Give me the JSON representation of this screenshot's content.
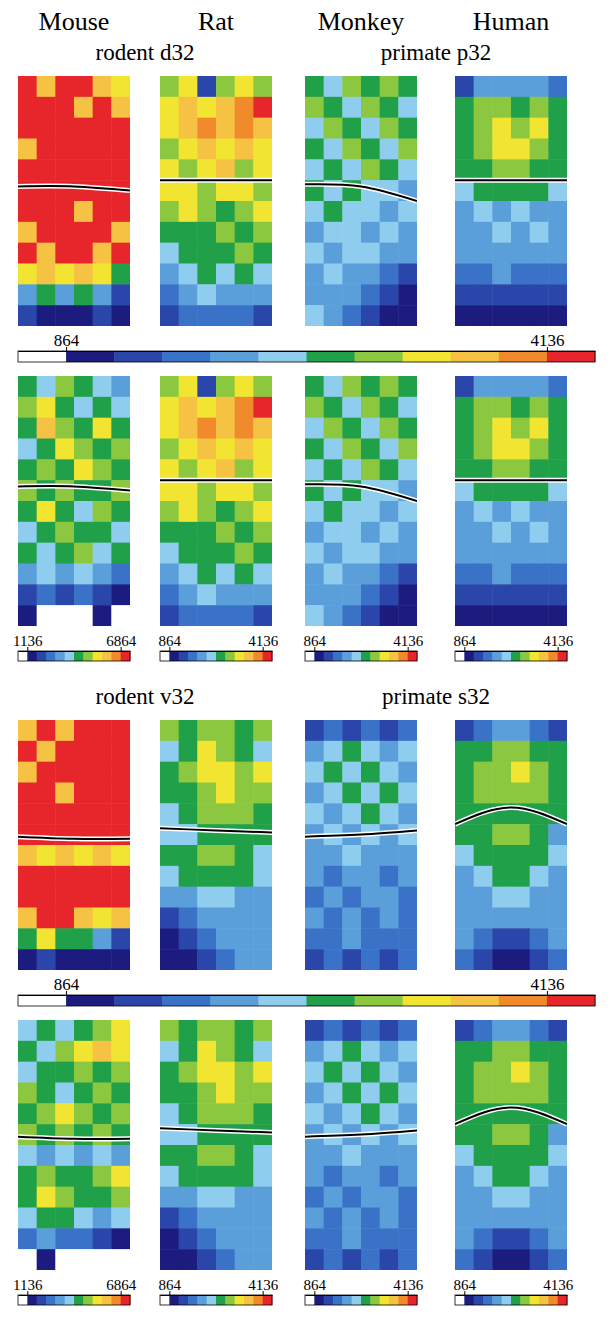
{
  "column_titles": [
    "Mouse",
    "Rat",
    "Monkey",
    "Human"
  ],
  "chart_data": [
    {
      "type": "heatmap",
      "titles": [
        "rodent d32",
        "primate p32"
      ],
      "panels": [
        {
          "cells": [
            [
              4300,
              3700,
              4800,
              4300,
              3700,
              3200
            ],
            [
              4800,
              5400,
              4300,
              3700,
              4300,
              3700
            ],
            [
              4300,
              5900,
              4800,
              4300,
              5400,
              4300
            ],
            [
              3700,
              4300,
              5400,
              4800,
              4300,
              4800
            ],
            [
              4300,
              4800,
              4300,
              5400,
              4800,
              4300
            ],
            [
              4800,
              4300,
              4800,
              4300,
              4300,
              4800
            ],
            [
              4300,
              5400,
              4300,
              3700,
              4800,
              4300
            ],
            [
              3700,
              4300,
              4800,
              4300,
              4300,
              3700
            ],
            [
              4300,
              3700,
              4300,
              4800,
              3700,
              4300
            ],
            [
              3200,
              3700,
              3200,
              3700,
              3200,
              2600
            ],
            [
              2000,
              2600,
              2000,
              2600,
              2000,
              1500
            ],
            [
              1500,
              1000,
              1000,
              1000,
              1300,
              1000
            ]
          ],
          "boundary": [
            5.3,
            5.3,
            5.5
          ]
        },
        {
          "cells": [
            [
              3000,
              3300,
              1350,
              3000,
              3300,
              3000
            ],
            [
              3300,
              3650,
              3300,
              3650,
              3950,
              4300
            ],
            [
              3300,
              3650,
              3950,
              3650,
              3950,
              3650
            ],
            [
              3000,
              3300,
              3650,
              3300,
              3650,
              3300
            ],
            [
              3300,
              3000,
              3300,
              3650,
              3000,
              3300
            ],
            [
              3300,
              3300,
              3000,
              3300,
              3300,
              3000
            ],
            [
              3000,
              3300,
              3000,
              2650,
              3000,
              3300
            ],
            [
              2650,
              2650,
              2650,
              3000,
              2650,
              3000
            ],
            [
              2350,
              2650,
              2650,
              2650,
              3000,
              2650
            ],
            [
              2000,
              2350,
              2650,
              2350,
              2650,
              2350
            ],
            [
              1700,
              2000,
              2350,
              2000,
              2000,
              2000
            ],
            [
              1350,
              1700,
              1700,
              1700,
              1700,
              1350
            ]
          ],
          "boundary": [
            5.0,
            5.0,
            5.0
          ]
        },
        {
          "cells": [
            [
              2650,
              2350,
              3000,
              2650,
              3000,
              2650
            ],
            [
              3000,
              2650,
              2350,
              3000,
              2650,
              2350
            ],
            [
              2350,
              3000,
              2650,
              2350,
              3000,
              2650
            ],
            [
              2650,
              2350,
              3000,
              2650,
              2350,
              3000
            ],
            [
              2350,
              2650,
              2350,
              3000,
              2650,
              2350
            ],
            [
              2650,
              2350,
              2650,
              2350,
              2350,
              2000
            ],
            [
              2350,
              2650,
              2350,
              2350,
              2000,
              2350
            ],
            [
              2000,
              2350,
              2350,
              2000,
              2350,
              2000
            ],
            [
              2350,
              2000,
              2350,
              2350,
              2000,
              2000
            ],
            [
              2000,
              2350,
              2000,
              2000,
              1700,
              1350
            ],
            [
              2000,
              2000,
              2000,
              1700,
              1350,
              1000
            ],
            [
              2350,
              2000,
              1700,
              1350,
              1000,
              1000
            ]
          ],
          "boundary": [
            5.2,
            5.3,
            6.0
          ]
        },
        {
          "cells": [
            [
              1350,
              2000,
              2000,
              2000,
              2000,
              1700
            ],
            [
              2650,
              3000,
              3000,
              2650,
              3000,
              2650
            ],
            [
              2650,
              3000,
              3300,
              3000,
              3300,
              2650
            ],
            [
              2650,
              3000,
              3300,
              3300,
              3000,
              2650
            ],
            [
              2650,
              2650,
              3000,
              3000,
              2650,
              2650
            ],
            [
              2350,
              2650,
              2650,
              2650,
              2650,
              2350
            ],
            [
              2000,
              2350,
              2000,
              2350,
              2000,
              2000
            ],
            [
              2000,
              2000,
              2350,
              2000,
              2350,
              2000
            ],
            [
              2000,
              2000,
              2000,
              2000,
              2000,
              2000
            ],
            [
              1700,
              1700,
              2000,
              1700,
              1700,
              1700
            ],
            [
              1350,
              1350,
              1350,
              1350,
              1350,
              1350
            ],
            [
              1000,
              1000,
              1000,
              1000,
              1000,
              1000
            ]
          ],
          "boundary": [
            5.0,
            5.0,
            5.0
          ]
        }
      ],
      "colorbar": {
        "range": [
          864,
          4136
        ],
        "ticks": [
          864,
          4136
        ]
      },
      "panel_colorbars": [
        {
          "range": [
            1136,
            6864
          ],
          "ticks": [
            1136,
            6864
          ]
        },
        {
          "range": [
            864,
            4136
          ],
          "ticks": [
            864,
            4136
          ]
        },
        {
          "range": [
            864,
            4136
          ],
          "ticks": [
            864,
            4136
          ]
        },
        {
          "range": [
            864,
            4136
          ],
          "ticks": [
            864,
            4136
          ]
        }
      ]
    },
    {
      "type": "heatmap",
      "titles": [
        "rodent v32",
        "primate s32"
      ],
      "panels": [
        {
          "cells": [
            [
              3700,
              4300,
              3700,
              4300,
              4800,
              5400
            ],
            [
              4300,
              3700,
              4800,
              5400,
              6000,
              5400
            ],
            [
              3700,
              4300,
              4300,
              4800,
              4300,
              4800
            ],
            [
              4800,
              4300,
              3700,
              4300,
              4800,
              4300
            ],
            [
              4300,
              4800,
              5400,
              4800,
              4300,
              4800
            ],
            [
              4800,
              4300,
              4800,
              4300,
              4800,
              4300
            ],
            [
              3700,
              3200,
              3700,
              3200,
              3700,
              3200
            ],
            [
              4300,
              4800,
              4300,
              4300,
              4800,
              5400
            ],
            [
              4300,
              5400,
              4800,
              4300,
              4300,
              4800
            ],
            [
              3700,
              4300,
              4300,
              3700,
              3200,
              3700
            ],
            [
              2600,
              3200,
              2600,
              2600,
              2000,
              1500
            ],
            [
              1000,
              1500,
              1000,
              1000,
              900,
              900
            ]
          ],
          "boundary": [
            5.6,
            5.7,
            5.7
          ]
        },
        {
          "cells": [
            [
              3000,
              2650,
              3000,
              3000,
              2650,
              3000
            ],
            [
              2350,
              2650,
              3300,
              3000,
              2650,
              2350
            ],
            [
              2650,
              3000,
              3300,
              3300,
              3000,
              3300
            ],
            [
              2650,
              2650,
              3000,
              3300,
              3000,
              3000
            ],
            [
              2350,
              2650,
              3000,
              3000,
              3000,
              2650
            ],
            [
              2350,
              2350,
              2650,
              2650,
              2650,
              2650
            ],
            [
              2650,
              2650,
              3000,
              3000,
              2650,
              2350
            ],
            [
              2350,
              2650,
              2650,
              2650,
              2650,
              2350
            ],
            [
              2000,
              2000,
              2350,
              2350,
              2000,
              2000
            ],
            [
              1350,
              1700,
              2000,
              2000,
              2000,
              2000
            ],
            [
              1000,
              1350,
              1700,
              2000,
              2000,
              2000
            ],
            [
              1000,
              1000,
              1350,
              1700,
              2000,
              2000
            ]
          ],
          "boundary": [
            5.2,
            5.3,
            5.4
          ]
        },
        {
          "cells": [
            [
              1350,
              1700,
              1350,
              1700,
              1350,
              1700
            ],
            [
              2000,
              2350,
              2650,
              2350,
              2000,
              2350
            ],
            [
              2350,
              2650,
              2350,
              2650,
              2350,
              2000
            ],
            [
              2000,
              2350,
              2650,
              2350,
              2650,
              2350
            ],
            [
              2350,
              2000,
              2350,
              2650,
              2350,
              2000
            ],
            [
              2000,
              2350,
              2000,
              2350,
              2000,
              2350
            ],
            [
              2000,
              2000,
              2350,
              2000,
              2000,
              2000
            ],
            [
              2000,
              1700,
              2000,
              2000,
              1700,
              2000
            ],
            [
              1700,
              2000,
              1700,
              2000,
              2000,
              1700
            ],
            [
              2000,
              1700,
              2000,
              1700,
              2000,
              1700
            ],
            [
              1700,
              1700,
              2000,
              1700,
              1700,
              1700
            ],
            [
              1350,
              1700,
              1350,
              1700,
              1350,
              1700
            ]
          ],
          "boundary": [
            5.6,
            5.5,
            5.3
          ]
        },
        {
          "cells": [
            [
              1350,
              1700,
              2000,
              2000,
              1700,
              1350
            ],
            [
              2650,
              2650,
              3000,
              3000,
              2650,
              2650
            ],
            [
              2650,
              3000,
              3000,
              3300,
              3000,
              2650
            ],
            [
              2650,
              3000,
              3000,
              3000,
              3000,
              2650
            ],
            [
              2650,
              2650,
              2650,
              2650,
              2650,
              2650
            ],
            [
              2650,
              2650,
              3000,
              3000,
              2650,
              2000
            ],
            [
              2350,
              2650,
              2650,
              2650,
              2650,
              2350
            ],
            [
              2000,
              2350,
              2650,
              2650,
              2350,
              2000
            ],
            [
              2000,
              2000,
              2350,
              2350,
              2000,
              2000
            ],
            [
              2000,
              2000,
              2000,
              2000,
              2000,
              2000
            ],
            [
              2000,
              1700,
              1350,
              1350,
              1700,
              2000
            ],
            [
              1700,
              1350,
              1000,
              1000,
              1350,
              1700
            ]
          ],
          "boundary": [
            5.0,
            4.2,
            5.0
          ]
        }
      ],
      "colorbar": {
        "range": [
          864,
          4136
        ],
        "ticks": [
          864,
          4136
        ]
      },
      "panel_colorbars": [
        {
          "range": [
            1136,
            6864
          ],
          "ticks": [
            1136,
            6864
          ]
        },
        {
          "range": [
            864,
            4136
          ],
          "ticks": [
            864,
            4136
          ]
        },
        {
          "range": [
            864,
            4136
          ],
          "ticks": [
            864,
            4136
          ]
        },
        {
          "range": [
            864,
            4136
          ],
          "ticks": [
            864,
            4136
          ]
        }
      ]
    }
  ]
}
